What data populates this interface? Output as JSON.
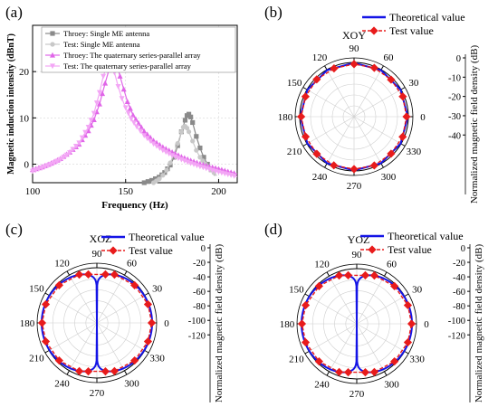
{
  "panels": {
    "a": "(a)",
    "b": "(b)",
    "c": "(c)",
    "d": "(d)"
  },
  "chart_data": [
    {
      "type": "line",
      "panel": "(a)",
      "title": "",
      "xlabel": "Frequency (Hz)",
      "ylabel": "Magnetic induction intensity (dBnT)",
      "xlim": [
        100,
        210
      ],
      "ylim": [
        -4,
        30
      ],
      "x_ticks": [
        100,
        150,
        200
      ],
      "y_ticks": [
        0,
        10,
        20
      ],
      "grid": true,
      "legend_position": "top",
      "series": [
        {
          "name": "Throey: Single ME antenna",
          "color": "#8a8a8a",
          "marker": "square",
          "x": [
            160,
            164,
            168,
            171,
            174,
            176,
            178,
            180,
            182,
            183,
            184,
            185,
            186,
            188,
            190,
            192,
            194,
            196,
            198
          ],
          "y": [
            -4,
            -3.5,
            -2.8,
            -1.8,
            -0.2,
            1.5,
            4,
            7,
            9.5,
            10.5,
            10.8,
            10.2,
            9,
            6,
            3.5,
            1.5,
            0,
            -1.2,
            -2.5
          ]
        },
        {
          "name": "Test: Single ME antenna",
          "color": "#c8c8c8",
          "marker": "circle",
          "x": [
            165,
            168,
            170,
            172,
            174,
            176,
            178,
            180,
            181,
            182,
            183,
            184,
            186,
            188,
            190,
            193,
            196,
            199
          ],
          "y": [
            -4,
            -3.2,
            -2.4,
            -1.3,
            0.3,
            2.2,
            4.5,
            7,
            8,
            8.2,
            7.8,
            7,
            5,
            3,
            1.5,
            0,
            -1.2,
            -2.5
          ]
        },
        {
          "name": "Throey: The quaternary series-parallel array",
          "color": "#e066e8",
          "marker": "triangle-up",
          "x": [
            100,
            105,
            110,
            115,
            120,
            125,
            130,
            133,
            136,
            139,
            141,
            143,
            144,
            145,
            146,
            147,
            149,
            151,
            154,
            157,
            160,
            165,
            170,
            175,
            180,
            185,
            190,
            195,
            200,
            205,
            210
          ],
          "y": [
            -1.2,
            -0.6,
            0.2,
            1.2,
            2.6,
            4.3,
            7.2,
            9.6,
            13,
            17.5,
            20.3,
            21.8,
            22,
            21.6,
            20.5,
            19,
            16.2,
            13.5,
            10.6,
            8.8,
            7.1,
            5.1,
            3.7,
            2.6,
            1.6,
            0.8,
            0.1,
            -0.5,
            -1,
            -1.6,
            -2.1
          ]
        },
        {
          "name": "Test: The quaternary series-parallel array",
          "color": "#f3a6f5",
          "marker": "triangle-down",
          "x": [
            100,
            105,
            110,
            115,
            120,
            125,
            130,
            133,
            136,
            138,
            140,
            141,
            142,
            143,
            144,
            146,
            148,
            150,
            153,
            156,
            160,
            165,
            170,
            175,
            180,
            185,
            190,
            195,
            200,
            205,
            210
          ],
          "y": [
            -1.5,
            -0.8,
            0,
            1,
            2.5,
            4.6,
            8,
            11,
            15.5,
            19,
            21.3,
            21.8,
            21.6,
            21,
            19.8,
            16.8,
            14.2,
            12.2,
            9.8,
            8.1,
            6.2,
            4.4,
            3,
            1.9,
            1,
            0.2,
            -0.5,
            -1.1,
            -1.7,
            -2.2,
            -2.7
          ]
        }
      ]
    },
    {
      "type": "polar",
      "panel": "(b)",
      "plane_label": "XOY",
      "radial_label": "Normalized magnetic field density (dB)",
      "r_ticks": [
        0,
        -10,
        -20,
        -30,
        -40
      ],
      "r_range": [
        -45,
        0
      ],
      "angle_ticks": [
        "0",
        "30",
        "60",
        "90",
        "120",
        "150",
        "180",
        "210",
        "240",
        "270",
        "300",
        "330"
      ],
      "legend": [
        "Theoretical value",
        "Test value"
      ],
      "series": [
        {
          "name": "Theoretical value",
          "color": "#1414e6",
          "angles_deg": [
            0,
            30,
            60,
            90,
            120,
            150,
            180,
            210,
            240,
            270,
            300,
            330,
            360
          ],
          "values_db": [
            -0.4,
            -0.4,
            -0.4,
            -0.4,
            -0.4,
            -0.4,
            -0.4,
            -0.4,
            -0.4,
            -0.4,
            -0.4,
            -0.4,
            -0.4
          ]
        },
        {
          "name": "Test value",
          "color": "#e81b1b",
          "angles_deg": [
            0,
            22.5,
            45,
            67.5,
            90,
            112.5,
            135,
            157.5,
            180,
            202.5,
            225,
            247.5,
            270,
            292.5,
            315,
            337.5
          ],
          "values_db": [
            -1.5,
            -1.3,
            -1.6,
            -1.2,
            -1.4,
            -1.7,
            -1.3,
            -1.5,
            -1.2,
            -1.6,
            -1.4,
            -1.3,
            -1.5,
            -1.2,
            -1.6,
            -1.4
          ]
        }
      ]
    },
    {
      "type": "polar",
      "panel": "(c)",
      "plane_label": "XOZ",
      "radial_label": "Normalized magnetic field density (dB)",
      "r_ticks": [
        0,
        -20,
        -40,
        -60,
        -80,
        -100,
        -120
      ],
      "r_range": [
        -130,
        0
      ],
      "angle_ticks": [
        "0",
        "30",
        "60",
        "90",
        "120",
        "150",
        "180",
        "210",
        "240",
        "270",
        "300",
        "330"
      ],
      "legend": [
        "Theoretical value",
        "Test value"
      ],
      "series": [
        {
          "name": "Theoretical value",
          "color": "#1414e6",
          "pattern": "20*log10(|cos(theta)|)",
          "angles_deg": [
            0,
            30,
            60,
            80,
            88,
            90,
            92,
            100,
            120,
            150,
            180,
            210,
            240,
            260,
            268,
            270,
            272,
            280,
            300,
            330
          ],
          "values_db": [
            0,
            -1.2,
            -6,
            -15,
            -28,
            -130,
            -28,
            -15,
            -6,
            -1.2,
            0,
            -1.2,
            -6,
            -15,
            -28,
            -130,
            -28,
            -15,
            -6,
            -1.2
          ]
        },
        {
          "name": "Test value",
          "color": "#e81b1b",
          "angles_deg": [
            0,
            20,
            45,
            70,
            80,
            100,
            110,
            135,
            160,
            180,
            200,
            225,
            250,
            260,
            280,
            290,
            315,
            340
          ],
          "values_db": [
            -1,
            -2,
            -4.5,
            -9,
            -14,
            -14,
            -9,
            -4.5,
            -2,
            -1,
            -2,
            -4.5,
            -9,
            -14,
            -14,
            -9,
            -4.5,
            -2
          ]
        }
      ]
    },
    {
      "type": "polar",
      "panel": "(d)",
      "plane_label": "YOZ",
      "radial_label": "Normalized magnetic field density (dB)",
      "r_ticks": [
        0,
        -20,
        -40,
        -60,
        -80,
        -100,
        -120
      ],
      "r_range": [
        -130,
        0
      ],
      "angle_ticks": [
        "0",
        "30",
        "60",
        "90",
        "120",
        "150",
        "180",
        "210",
        "240",
        "270",
        "300",
        "330"
      ],
      "legend": [
        "Theoretical value",
        "Test value"
      ],
      "series": [
        {
          "name": "Theoretical value",
          "color": "#1414e6",
          "pattern": "20*log10(|cos(theta)|)",
          "angles_deg": [
            0,
            30,
            60,
            80,
            88,
            90,
            92,
            100,
            120,
            150,
            180,
            210,
            240,
            260,
            268,
            270,
            272,
            280,
            300,
            330
          ],
          "values_db": [
            0,
            -1.2,
            -6,
            -15,
            -28,
            -130,
            -28,
            -15,
            -6,
            -1.2,
            0,
            -1.2,
            -6,
            -15,
            -28,
            -130,
            -28,
            -15,
            -6,
            -1.2
          ]
        },
        {
          "name": "Test value",
          "color": "#e81b1b",
          "angles_deg": [
            0,
            20,
            45,
            70,
            80,
            100,
            110,
            135,
            160,
            180,
            200,
            225,
            250,
            260,
            280,
            290,
            315,
            340
          ],
          "values_db": [
            -1,
            -2,
            -4.5,
            -9,
            -14,
            -14,
            -9,
            -4.5,
            -2,
            -1,
            -2,
            -4.5,
            -9,
            -14,
            -14,
            -9,
            -4.5,
            -2
          ]
        }
      ]
    }
  ]
}
